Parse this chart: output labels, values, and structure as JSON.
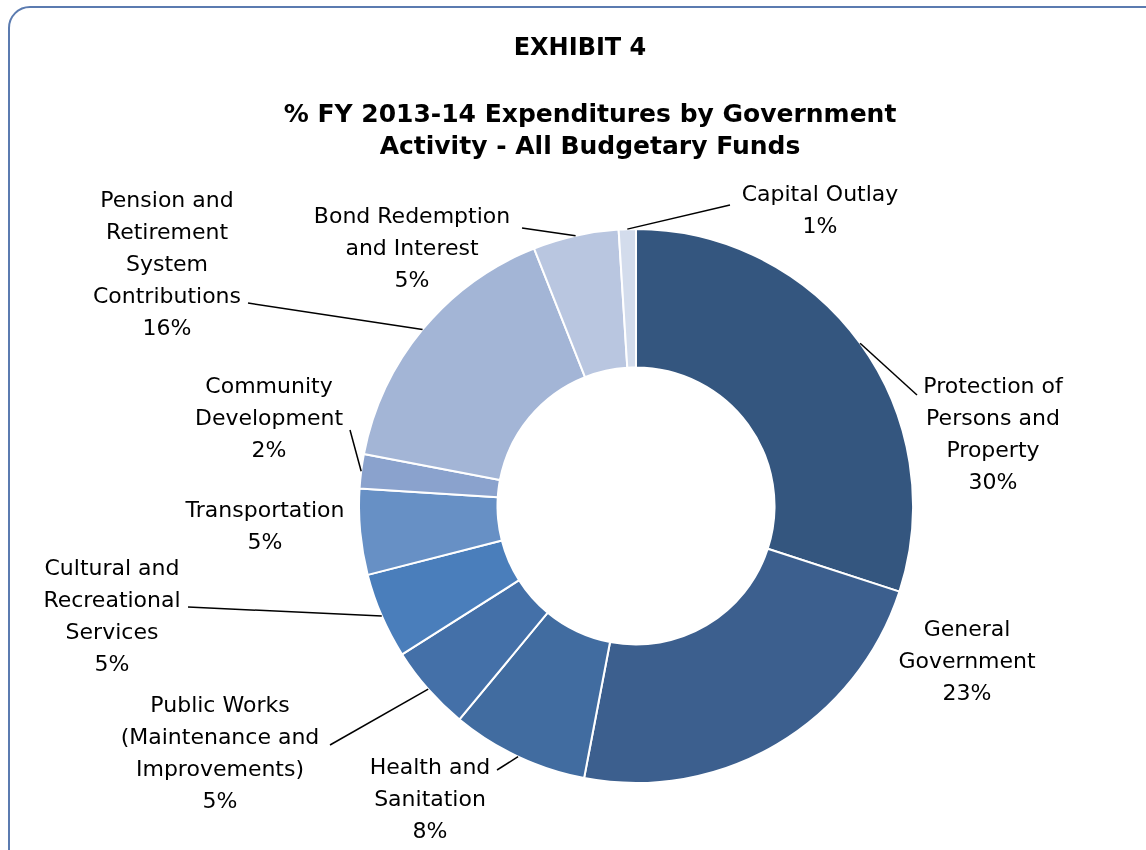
{
  "chart_data": {
    "type": "donut",
    "title": "EXHIBIT 4",
    "subtitle": "% FY 2013-14 Expenditures by Government Activity - All Budgetary Funds",
    "categories": [
      "Protection of Persons and Property",
      "General Government",
      "Health and Sanitation",
      "Public Works (Maintenance and Improvements)",
      "Cultural and Recreational Services",
      "Transportation",
      "Community Development",
      "Pension and Retirement System Contributions",
      "Bond Redemption and Interest",
      "Capital Outlay"
    ],
    "values": [
      30,
      23,
      8,
      5,
      5,
      5,
      2,
      16,
      5,
      1
    ],
    "value_labels": [
      "30%",
      "23%",
      "8%",
      "5%",
      "5%",
      "5%",
      "2%",
      "16%",
      "5%",
      "1%"
    ],
    "colors": [
      "#34567f",
      "#3c5f8e",
      "#416ca0",
      "#4470a8",
      "#4a7ebb",
      "#6790c5",
      "#8aa2cd",
      "#a3b5d6",
      "#b9c6e0",
      "#d3dcec"
    ],
    "legend": false
  }
}
